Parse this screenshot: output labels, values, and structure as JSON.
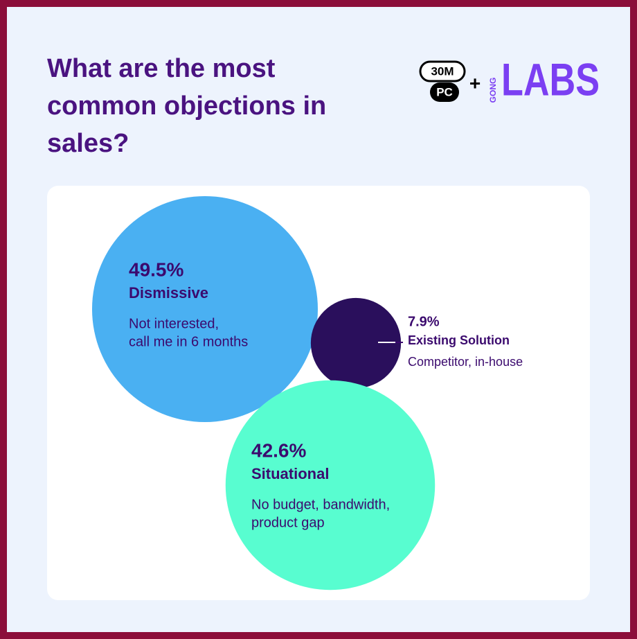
{
  "chart_data": {
    "type": "bubble",
    "title": "What are the most common objections in sales?",
    "categories": [
      "Dismissive",
      "Existing Solution",
      "Situational"
    ],
    "values": [
      49.5,
      7.9,
      42.6
    ],
    "value_labels": [
      "49.5%",
      "7.9%",
      "42.6%"
    ],
    "descriptions": [
      [
        "Not interested,",
        "call me in 6 months"
      ],
      [
        "Competitor, in-house"
      ],
      [
        "No budget, bandwidth,",
        "product gap"
      ]
    ],
    "colors": [
      "#4ab0f2",
      "#2a0f5c",
      "#58fdd0"
    ],
    "logo": [
      "30M",
      "PC",
      "+",
      "GONG",
      "LABS"
    ]
  }
}
